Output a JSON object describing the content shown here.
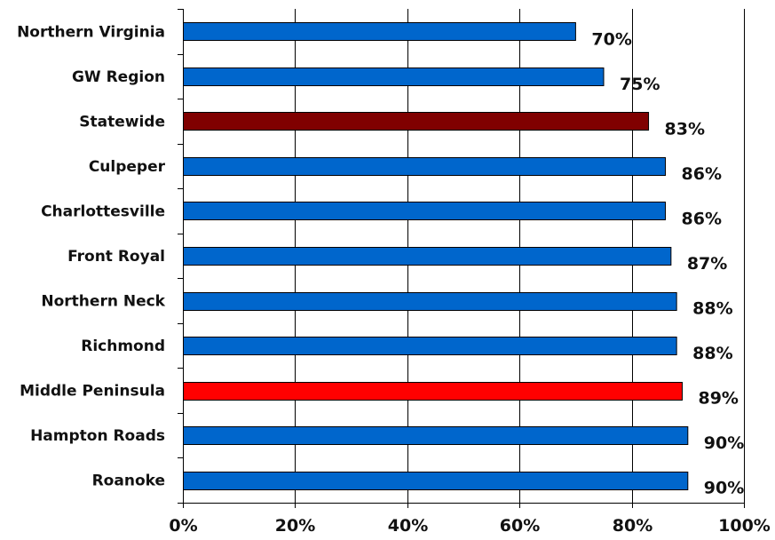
{
  "chart_data": {
    "type": "bar",
    "orientation": "horizontal",
    "categories": [
      "Northern Virginia",
      "GW Region",
      "Statewide",
      "Culpeper",
      "Charlottesville",
      "Front Royal",
      "Northern Neck",
      "Richmond",
      "Middle Peninsula",
      "Hampton Roads",
      "Roanoke"
    ],
    "values": [
      70,
      75,
      83,
      86,
      86,
      87,
      88,
      88,
      89,
      90,
      90
    ],
    "value_labels": [
      "70%",
      "75%",
      "83%",
      "86%",
      "86%",
      "87%",
      "88%",
      "88%",
      "89%",
      "90%",
      "90%"
    ],
    "colors": [
      "#0066cc",
      "#0066cc",
      "#800000",
      "#0066cc",
      "#0066cc",
      "#0066cc",
      "#0066cc",
      "#0066cc",
      "#ff0000",
      "#0066cc",
      "#0066cc"
    ],
    "xlim": [
      0,
      100
    ],
    "xticks": [
      0,
      20,
      40,
      60,
      80,
      100
    ],
    "xtick_labels": [
      "0%",
      "20%",
      "40%",
      "60%",
      "80%",
      "100%"
    ],
    "grid": "vertical",
    "legend": "none",
    "title": "",
    "xlabel": "",
    "ylabel": ""
  }
}
